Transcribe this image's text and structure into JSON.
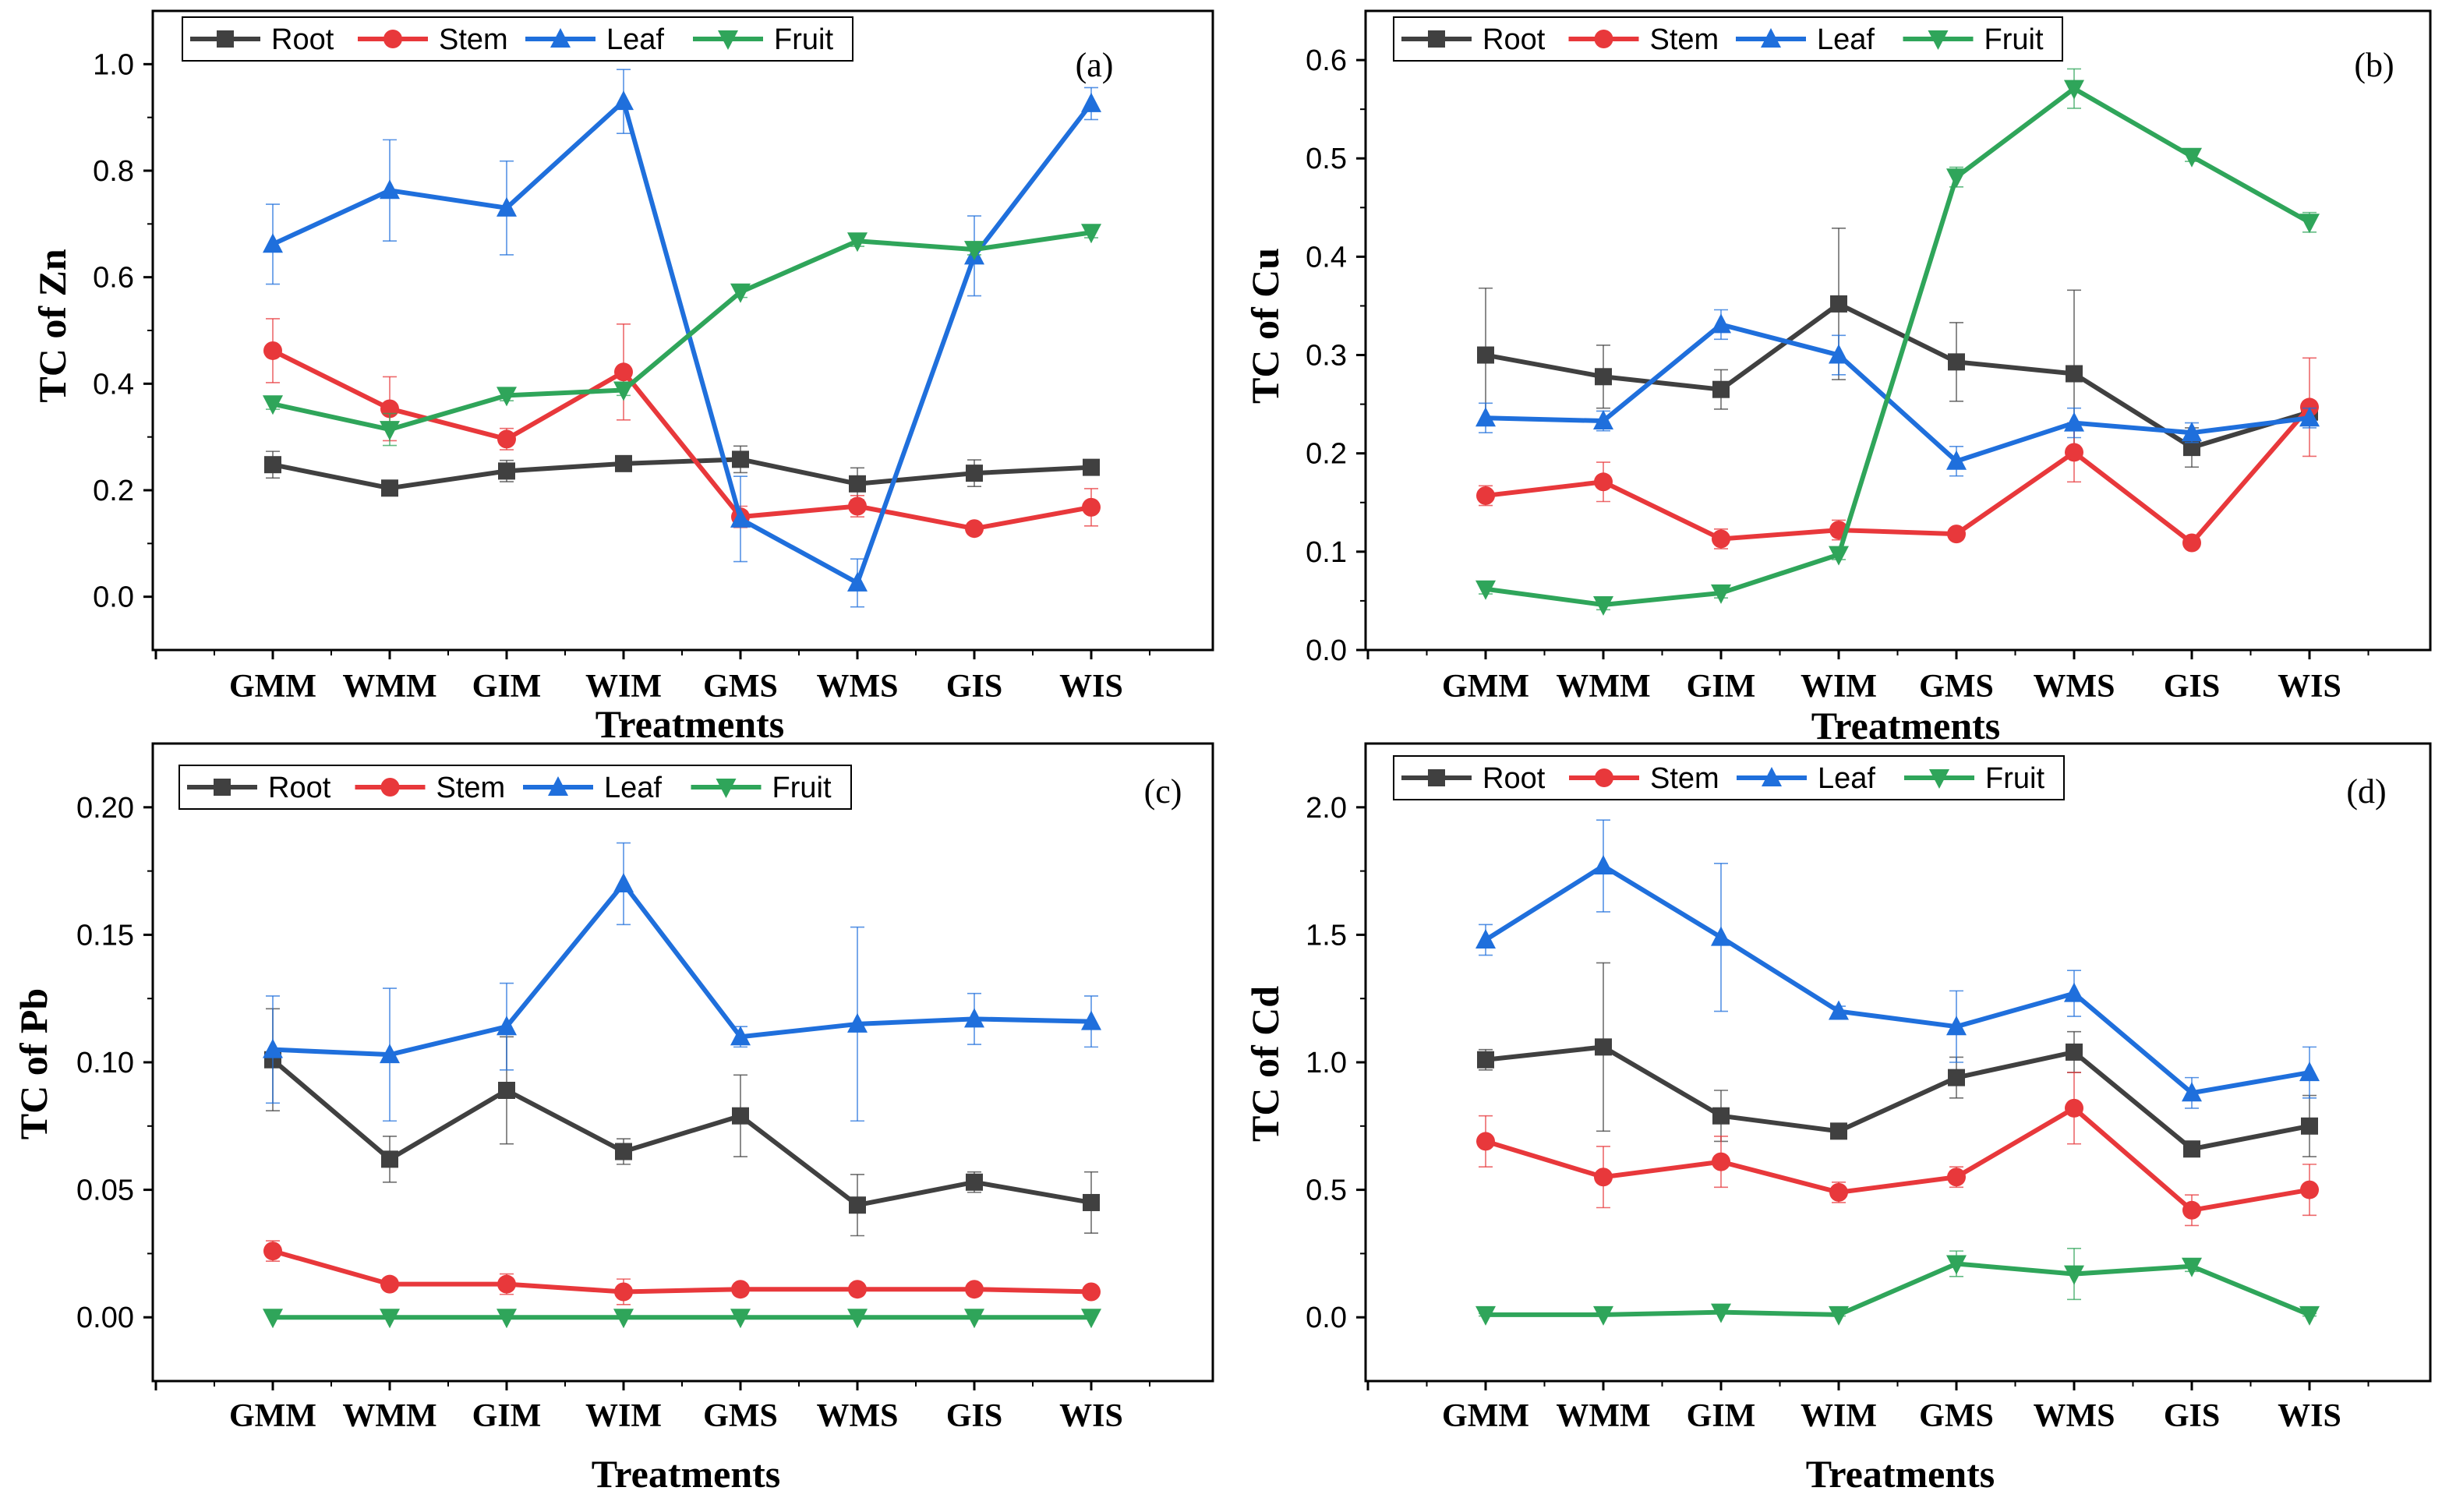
{
  "figure": {
    "series_colors": {
      "Root": "#404040",
      "Stem": "#e8383b",
      "Leaf": "#1f6fdc",
      "Fruit": "#2fa55a"
    },
    "markers": {
      "Root": "square",
      "Stem": "circle",
      "Leaf": "triangle-up",
      "Fruit": "triangle-down"
    }
  },
  "chart_data": [
    {
      "type": "line",
      "panel_label": "(a)",
      "title": "",
      "xlabel": "Treatments",
      "ylabel": "TC of Zn",
      "categories": [
        "GMM",
        "WMM",
        "GIM",
        "WIM",
        "GMS",
        "WMS",
        "GIS",
        "WIS"
      ],
      "ylim": [
        -0.1,
        1.1
      ],
      "yticks": [
        0.0,
        0.2,
        0.4,
        0.6,
        0.8,
        1.0
      ],
      "ytick_labels": [
        "0.0",
        "0.2",
        "0.4",
        "0.6",
        "0.8",
        "1.0"
      ],
      "legend": [
        "Root",
        "Stem",
        "Leaf",
        "Fruit"
      ],
      "legend_position": "top-left",
      "series": [
        {
          "name": "Root",
          "values": [
            0.248,
            0.204,
            0.236,
            0.25,
            0.258,
            0.212,
            0.232,
            0.243
          ],
          "errors": [
            0.025,
            0.01,
            0.02,
            0.01,
            0.025,
            0.03,
            0.025,
            0.01
          ]
        },
        {
          "name": "Stem",
          "values": [
            0.462,
            0.353,
            0.296,
            0.422,
            0.15,
            0.17,
            0.128,
            0.168
          ],
          "errors": [
            0.06,
            0.06,
            0.02,
            0.09,
            0.02,
            0.02,
            0.01,
            0.035
          ]
        },
        {
          "name": "Leaf",
          "values": [
            0.662,
            0.763,
            0.73,
            0.93,
            0.146,
            0.026,
            0.64,
            0.926
          ],
          "errors": [
            0.075,
            0.095,
            0.088,
            0.06,
            0.08,
            0.045,
            0.075,
            0.03
          ]
        },
        {
          "name": "Fruit",
          "values": [
            0.362,
            0.314,
            0.378,
            0.388,
            0.572,
            0.668,
            0.652,
            0.684
          ],
          "errors": [
            0.01,
            0.03,
            0.01,
            0.01,
            0.01,
            0.01,
            0.01,
            0.01
          ]
        }
      ]
    },
    {
      "type": "line",
      "panel_label": "(b)",
      "title": "",
      "xlabel": "Treatments",
      "ylabel": "TC of Cu",
      "categories": [
        "GMM",
        "WMM",
        "GIM",
        "WIM",
        "GMS",
        "WMS",
        "GIS",
        "WIS"
      ],
      "ylim": [
        0.0,
        0.65
      ],
      "yticks": [
        0.0,
        0.1,
        0.2,
        0.3,
        0.4,
        0.5,
        0.6
      ],
      "ytick_labels": [
        "0.0",
        "0.1",
        "0.2",
        "0.3",
        "0.4",
        "0.5",
        "0.6"
      ],
      "legend": [
        "Root",
        "Stem",
        "Leaf",
        "Fruit"
      ],
      "legend_position": "top-left",
      "series": [
        {
          "name": "Root",
          "values": [
            0.3,
            0.278,
            0.265,
            0.352,
            0.293,
            0.281,
            0.206,
            0.242
          ],
          "errors": [
            0.068,
            0.032,
            0.02,
            0.077,
            0.04,
            0.085,
            0.02,
            0.01
          ]
        },
        {
          "name": "Stem",
          "values": [
            0.157,
            0.171,
            0.113,
            0.122,
            0.118,
            0.201,
            0.109,
            0.247
          ],
          "errors": [
            0.01,
            0.02,
            0.01,
            0.01,
            0.005,
            0.03,
            0.005,
            0.05
          ]
        },
        {
          "name": "Leaf",
          "values": [
            0.236,
            0.233,
            0.331,
            0.3,
            0.192,
            0.231,
            0.221,
            0.236
          ],
          "errors": [
            0.015,
            0.01,
            0.015,
            0.02,
            0.015,
            0.015,
            0.01,
            0.01
          ]
        },
        {
          "name": "Fruit",
          "values": [
            0.062,
            0.046,
            0.058,
            0.097,
            0.481,
            0.571,
            0.502,
            0.435
          ],
          "errors": [
            0.005,
            0.005,
            0.005,
            0.005,
            0.01,
            0.02,
            0.005,
            0.01
          ]
        }
      ]
    },
    {
      "type": "line",
      "panel_label": "(c)",
      "title": "",
      "xlabel": "Treatments",
      "ylabel": "TC of Pb",
      "categories": [
        "GMM",
        "WMM",
        "GIM",
        "WIM",
        "GMS",
        "WMS",
        "GIS",
        "WIS"
      ],
      "ylim": [
        -0.025,
        0.225
      ],
      "yticks": [
        0.0,
        0.05,
        0.1,
        0.15,
        0.2
      ],
      "ytick_labels": [
        "0.00",
        "0.05",
        "0.10",
        "0.15",
        "0.20"
      ],
      "legend": [
        "Root",
        "Stem",
        "Leaf",
        "Fruit"
      ],
      "legend_position": "top-left",
      "series": [
        {
          "name": "Root",
          "values": [
            0.101,
            0.062,
            0.089,
            0.065,
            0.079,
            0.044,
            0.053,
            0.045
          ],
          "errors": [
            0.02,
            0.009,
            0.021,
            0.005,
            0.016,
            0.012,
            0.004,
            0.012
          ]
        },
        {
          "name": "Stem",
          "values": [
            0.026,
            0.013,
            0.013,
            0.01,
            0.011,
            0.011,
            0.011,
            0.01
          ],
          "errors": [
            0.004,
            0.002,
            0.004,
            0.005,
            0.002,
            0.002,
            0.002,
            0.002
          ]
        },
        {
          "name": "Leaf",
          "values": [
            0.105,
            0.103,
            0.114,
            0.17,
            0.11,
            0.115,
            0.117,
            0.116
          ],
          "errors": [
            0.021,
            0.026,
            0.017,
            0.016,
            0.004,
            0.038,
            0.01,
            0.01
          ]
        },
        {
          "name": "Fruit",
          "values": [
            0.0,
            0.0,
            0.0,
            0.0,
            0.0,
            0.0,
            0.0,
            0.0
          ],
          "errors": [
            0,
            0,
            0,
            0,
            0,
            0,
            0,
            0
          ]
        }
      ]
    },
    {
      "type": "line",
      "panel_label": "(d)",
      "title": "",
      "xlabel": "Treatments",
      "ylabel": "TC of Cd",
      "categories": [
        "GMM",
        "WMM",
        "GIM",
        "WIM",
        "GMS",
        "WMS",
        "GIS",
        "WIS"
      ],
      "ylim": [
        -0.25,
        2.25
      ],
      "yticks": [
        0.0,
        0.5,
        1.0,
        1.5,
        2.0
      ],
      "ytick_labels": [
        "0.0",
        "0.5",
        "1.0",
        "1.5",
        "2.0"
      ],
      "legend": [
        "Root",
        "Stem",
        "Leaf",
        "Fruit"
      ],
      "legend_position": "top-left",
      "series": [
        {
          "name": "Root",
          "values": [
            1.01,
            1.06,
            0.79,
            0.73,
            0.94,
            1.04,
            0.66,
            0.75
          ],
          "errors": [
            0.04,
            0.33,
            0.1,
            0.03,
            0.08,
            0.08,
            0.03,
            0.12
          ]
        },
        {
          "name": "Stem",
          "values": [
            0.69,
            0.55,
            0.61,
            0.49,
            0.55,
            0.82,
            0.42,
            0.5
          ],
          "errors": [
            0.1,
            0.12,
            0.1,
            0.04,
            0.04,
            0.14,
            0.06,
            0.1
          ]
        },
        {
          "name": "Leaf",
          "values": [
            1.48,
            1.77,
            1.49,
            1.2,
            1.14,
            1.27,
            0.88,
            0.96
          ],
          "errors": [
            0.06,
            0.18,
            0.29,
            0.02,
            0.14,
            0.09,
            0.06,
            0.1
          ]
        },
        {
          "name": "Fruit",
          "values": [
            0.01,
            0.01,
            0.02,
            0.01,
            0.21,
            0.17,
            0.2,
            0.01
          ],
          "errors": [
            0.005,
            0.005,
            0.005,
            0.005,
            0.05,
            0.1,
            0.02,
            0.005
          ]
        }
      ]
    }
  ]
}
